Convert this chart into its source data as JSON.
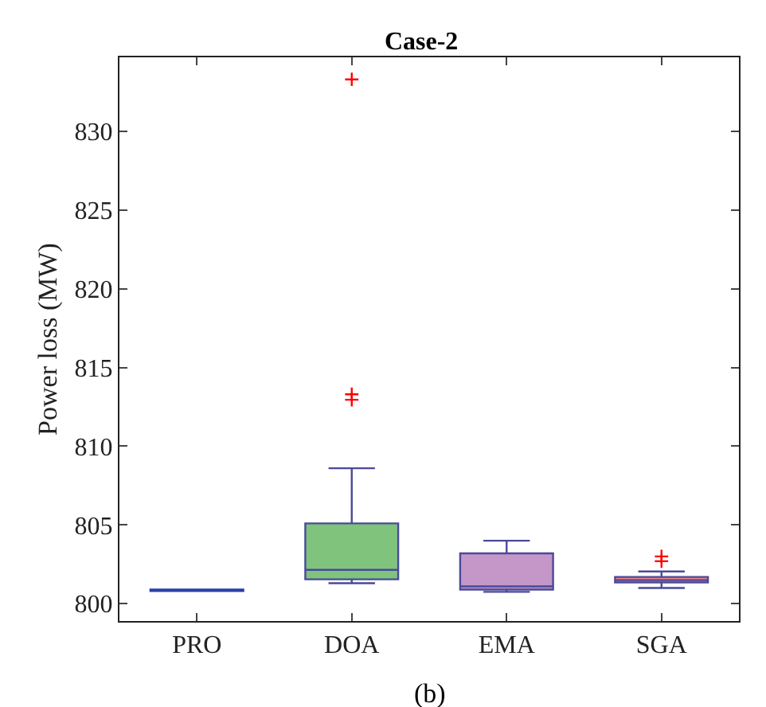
{
  "chart_data": {
    "type": "box",
    "title": "Case-2",
    "ylabel": "Power loss (MW)",
    "categories": [
      "PRO",
      "DOA",
      "EMA",
      "SGA"
    ],
    "colors": [
      "#2b3fa8",
      "#7fc37d",
      "#c597c8",
      "#ef8080"
    ],
    "boxes": [
      {
        "low": 800.8,
        "q1": 800.8,
        "median": 800.85,
        "q3": 800.9,
        "high": 800.9
      },
      {
        "low": 801.3,
        "q1": 801.55,
        "median": 802.15,
        "q3": 805.1,
        "high": 808.6,
        "outliers": [
          833.3,
          813.3,
          812.95
        ]
      },
      {
        "low": 800.75,
        "q1": 800.9,
        "median": 801.1,
        "q3": 803.2,
        "high": 804
      },
      {
        "low": 801,
        "q1": 801.35,
        "median": 801.5,
        "q3": 801.7,
        "high": 802.05,
        "outliers": [
          803,
          802.7
        ]
      }
    ],
    "ylim": [
      798.9,
      834.7
    ],
    "yticks": [
      800,
      805,
      810,
      815,
      820,
      825,
      830
    ],
    "grid": false,
    "annotations": [
      "(b)"
    ]
  }
}
